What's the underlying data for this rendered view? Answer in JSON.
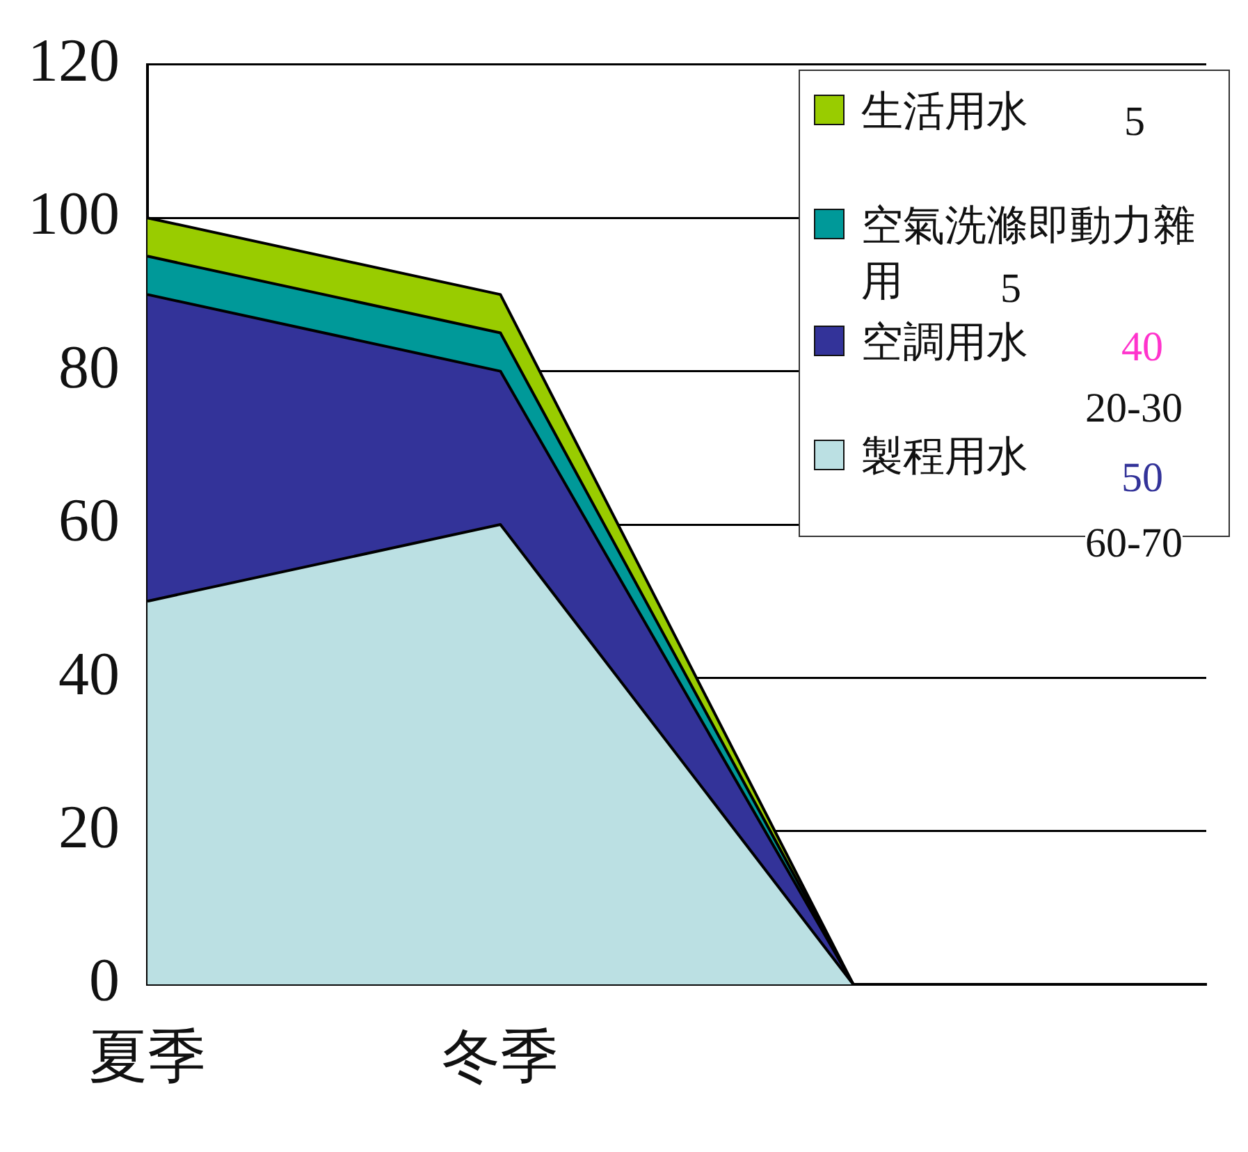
{
  "chart_data": {
    "type": "area",
    "stacked": true,
    "categories": [
      "夏季",
      "冬季",
      null,
      null
    ],
    "series": [
      {
        "name": "製程用水",
        "color": "#bbe0e3",
        "values": [
          50,
          60,
          0,
          null
        ]
      },
      {
        "name": "空調用水",
        "color": "#333399",
        "values": [
          40,
          20,
          0,
          null
        ]
      },
      {
        "name": "空氣洗滌即動力雜用",
        "color": "#009999",
        "values": [
          5,
          5,
          0,
          null
        ]
      },
      {
        "name": "生活用水",
        "color": "#99cc00",
        "values": [
          5,
          5,
          0,
          null
        ]
      }
    ],
    "ylim": [
      0,
      120
    ],
    "yticks": [
      0,
      20,
      40,
      60,
      80,
      100,
      120
    ],
    "grid": "y",
    "legend": "top right",
    "annotations": [
      "5",
      "5",
      "40",
      "20-30",
      "50",
      "60-70"
    ]
  }
}
